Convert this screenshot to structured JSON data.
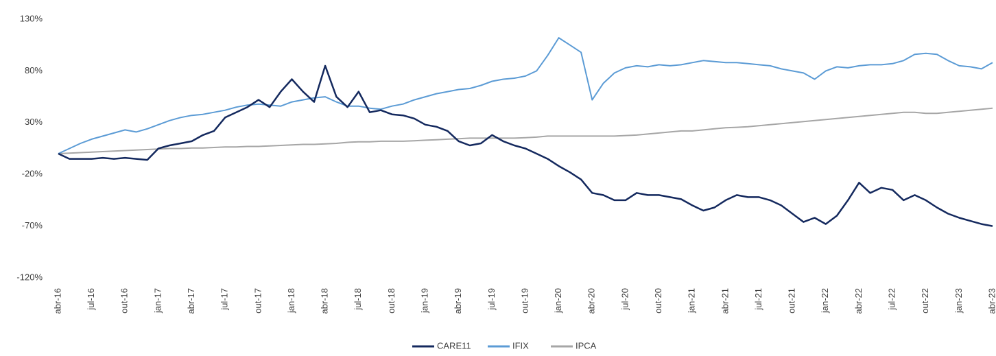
{
  "chart_data": {
    "type": "line",
    "categories": [
      "abr-16",
      null,
      null,
      "jul-16",
      null,
      null,
      "out-16",
      null,
      null,
      "jan-17",
      null,
      null,
      "abr-17",
      null,
      null,
      "jul-17",
      null,
      null,
      "out-17",
      null,
      null,
      "jan-18",
      null,
      null,
      "abr-18",
      null,
      null,
      "jul-18",
      null,
      null,
      "out-18",
      null,
      null,
      "jan-19",
      null,
      null,
      "abr-19",
      null,
      null,
      "jul-19",
      null,
      null,
      "out-19",
      null,
      null,
      "jan-20",
      null,
      null,
      "abr-20",
      null,
      null,
      "jul-20",
      null,
      null,
      "out-20",
      null,
      null,
      "jan-21",
      null,
      null,
      "abr-21",
      null,
      null,
      "jul-21",
      null,
      null,
      "out-21",
      null,
      null,
      "jan-22",
      null,
      null,
      "abr-22",
      null,
      null,
      "jul-22",
      null,
      null,
      "out-22",
      null,
      null,
      "jan-23",
      null,
      null,
      "abr-23"
    ],
    "series": [
      {
        "name": "CARE11",
        "color": "#14295e",
        "values": [
          0,
          -5,
          -5,
          -5,
          -4,
          -5,
          -4,
          -5,
          -6,
          5,
          8,
          10,
          12,
          18,
          22,
          35,
          40,
          45,
          52,
          45,
          60,
          72,
          60,
          50,
          85,
          55,
          45,
          60,
          40,
          42,
          38,
          37,
          34,
          28,
          26,
          22,
          12,
          8,
          10,
          18,
          12,
          8,
          5,
          0,
          -5,
          -12,
          -18,
          -25,
          -38,
          -40,
          -45,
          -45,
          -38,
          -40,
          -40,
          -42,
          -44,
          -50,
          -55,
          -52,
          -45,
          -40,
          -42,
          -42,
          -45,
          -50,
          -58,
          -66,
          -62,
          -68,
          -60,
          -45,
          -28,
          -38,
          -33,
          -35,
          -45,
          -40,
          -45,
          -52,
          -58,
          -62,
          -65,
          -68,
          -70
        ]
      },
      {
        "name": "IFIX",
        "color": "#5b9bd5",
        "values": [
          0,
          5,
          10,
          14,
          17,
          20,
          23,
          21,
          24,
          28,
          32,
          35,
          37,
          38,
          40,
          42,
          45,
          47,
          48,
          47,
          46,
          50,
          52,
          54,
          55,
          50,
          46,
          46,
          44,
          43,
          46,
          48,
          52,
          55,
          58,
          60,
          62,
          63,
          66,
          70,
          72,
          73,
          75,
          80,
          95,
          112,
          105,
          98,
          52,
          68,
          78,
          83,
          85,
          84,
          86,
          85,
          86,
          88,
          90,
          89,
          88,
          88,
          87,
          86,
          85,
          82,
          80,
          78,
          72,
          80,
          84,
          83,
          85,
          86,
          86,
          87,
          90,
          96,
          97,
          96,
          90,
          85,
          84,
          82,
          88
        ]
      },
      {
        "name": "IPCA",
        "color": "#a6a6a6",
        "values": [
          0,
          0.5,
          1,
          1.5,
          2,
          2.5,
          3,
          3.5,
          4,
          4.5,
          5,
          5,
          5.5,
          5.5,
          6,
          6.5,
          6.5,
          7,
          7,
          7.5,
          8,
          8.5,
          9,
          9,
          9.5,
          10,
          11,
          11.5,
          11.5,
          12,
          12,
          12,
          12.5,
          13,
          13.5,
          14,
          14.5,
          15,
          15,
          15,
          15,
          15,
          15.5,
          16,
          17,
          17,
          17,
          17,
          17,
          17,
          17,
          17.5,
          18,
          19,
          20,
          21,
          22,
          22,
          23,
          24,
          25,
          25.5,
          26,
          27,
          28,
          29,
          30,
          31,
          32,
          33,
          34,
          35,
          36,
          37,
          38,
          39,
          40,
          40,
          39,
          39,
          40,
          41,
          42,
          43,
          44
        ]
      }
    ],
    "ylim": [
      -120,
      130
    ],
    "yticks": [
      {
        "value": -120,
        "label": "-120%"
      },
      {
        "value": -70,
        "label": "-70%"
      },
      {
        "value": -20,
        "label": "-20%"
      },
      {
        "value": 30,
        "label": "30%"
      },
      {
        "value": 80,
        "label": "80%"
      },
      {
        "value": 130,
        "label": "130%"
      }
    ],
    "grid": false,
    "legend": "bottom"
  }
}
